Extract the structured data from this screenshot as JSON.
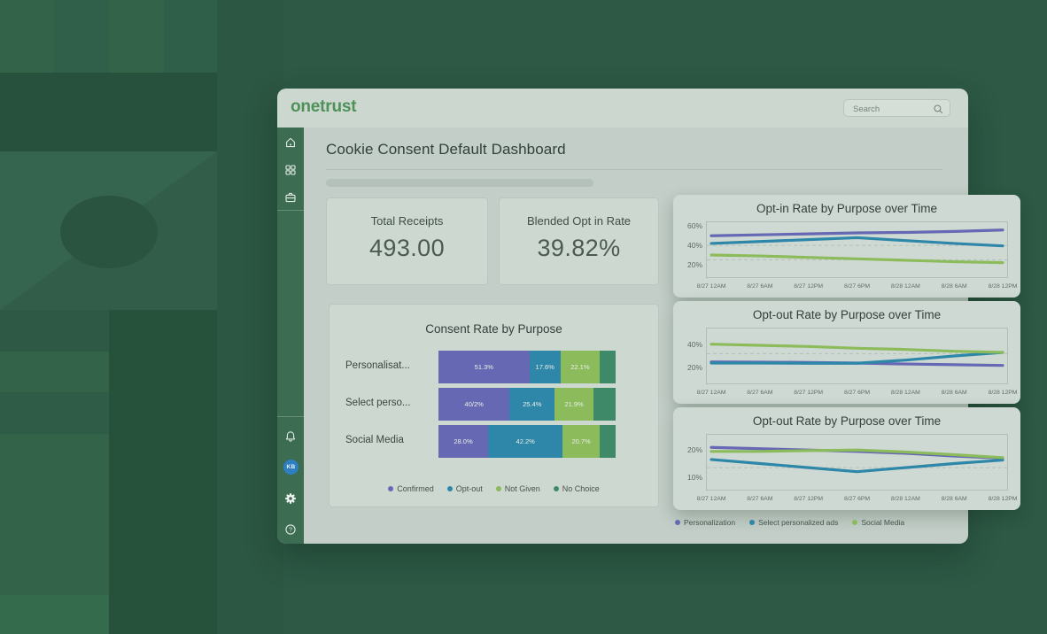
{
  "brand": {
    "logo_text": "onetrust",
    "logo_color": "#4e9159"
  },
  "header": {
    "search_placeholder": "Search"
  },
  "sidebar": {
    "avatar_initials": "KB"
  },
  "page": {
    "title": "Cookie Consent Default Dashboard"
  },
  "kpis": [
    {
      "label": "Total Receipts",
      "value": "493.00"
    },
    {
      "label": "Blended Opt in Rate",
      "value": "39.82%"
    }
  ],
  "palette": {
    "purple": "#6668b3",
    "teal": "#2e86a8",
    "green": "#8cbb5c",
    "dark_green": "#3e8a68"
  },
  "chart_data": [
    {
      "type": "bar",
      "orientation": "horizontal-stacked",
      "title": "Consent Rate by Purpose",
      "categories": [
        "Personalisat...",
        "Select perso...",
        "Social Media"
      ],
      "series": [
        {
          "name": "Confirmed",
          "color": "#6668b3",
          "values": [
            51.3,
            40.2,
            28.0
          ],
          "labels": [
            "51.3%",
            "40/2%",
            "28.0%"
          ]
        },
        {
          "name": "Opt-out",
          "color": "#2e86a8",
          "values": [
            17.6,
            25.4,
            42.2
          ],
          "labels": [
            "17.6%",
            "25.4%",
            "42.2%"
          ]
        },
        {
          "name": "Not Given",
          "color": "#8cbb5c",
          "values": [
            22.1,
            21.9,
            20.7
          ],
          "labels": [
            "22.1%",
            "21.9%",
            "20.7%"
          ]
        },
        {
          "name": "No Choice",
          "color": "#3e8a68",
          "values": [
            9.0,
            12.5,
            9.1
          ],
          "labels": [
            "",
            "",
            ""
          ]
        }
      ],
      "legend_position": "bottom",
      "xlim": [
        0,
        100
      ]
    },
    {
      "type": "line",
      "title": "Opt-in Rate by Purpose over Time",
      "x": [
        "8/27 12AM",
        "8/27 6AM",
        "8/27 12PM",
        "8/27 6PM",
        "8/28 12AM",
        "8/28 6AM",
        "8/28 12PM"
      ],
      "series": [
        {
          "name": "Personalization",
          "color": "#6668b3",
          "values": [
            50,
            51,
            52,
            53,
            53.5,
            54.5,
            56
          ]
        },
        {
          "name": "Select personalized ads",
          "color": "#2e86a8",
          "values": [
            42,
            44,
            46,
            48,
            45,
            42,
            39.5
          ]
        },
        {
          "name": "Social Media",
          "color": "#8cbb5c",
          "values": [
            30,
            29,
            27.5,
            26,
            24.5,
            23,
            22
          ]
        }
      ],
      "yticks": [
        20,
        40,
        60
      ],
      "ytick_labels": [
        "20%",
        "40%",
        "60%"
      ],
      "ylim": [
        6,
        65
      ],
      "reference_lines": [
        40,
        25
      ],
      "grid": "dashed-reference-lines",
      "legend_position": "shared-bottom"
    },
    {
      "type": "line",
      "title": "Opt-out Rate by Purpose over Time",
      "x": [
        "8/27 12AM",
        "8/27 6AM",
        "8/27 12PM",
        "8/27 6PM",
        "8/28 12AM",
        "8/28 6AM",
        "8/28 12PM"
      ],
      "series": [
        {
          "name": "Personalization",
          "color": "#6668b3",
          "values": [
            25,
            24.8,
            24.5,
            24,
            23.2,
            22.6,
            22
          ]
        },
        {
          "name": "Select personalized ads",
          "color": "#2e86a8",
          "values": [
            24,
            24,
            23.8,
            23.8,
            26.5,
            30,
            33
          ]
        },
        {
          "name": "Social Media",
          "color": "#8cbb5c",
          "values": [
            40,
            39,
            38,
            36.5,
            35.5,
            34,
            33
          ]
        }
      ],
      "yticks": [
        20,
        40
      ],
      "ytick_labels": [
        "20%",
        "40%"
      ],
      "ylim": [
        6,
        54
      ],
      "reference_lines": [
        32
      ],
      "grid": "dashed-reference-lines",
      "legend_position": "shared-bottom"
    },
    {
      "type": "line",
      "title": "Opt-out Rate by Purpose over Time",
      "x": [
        "8/27 12AM",
        "8/27 6AM",
        "8/27 12PM",
        "8/27 6PM",
        "8/28 12AM",
        "8/28 6AM",
        "8/28 12PM"
      ],
      "series": [
        {
          "name": "Personalization",
          "color": "#6668b3",
          "values": [
            21,
            20.5,
            20,
            19.5,
            18.8,
            17.8,
            17
          ]
        },
        {
          "name": "Select personalized ads",
          "color": "#2e86a8",
          "values": [
            16.5,
            15,
            13.5,
            12,
            13.5,
            15,
            16.3
          ]
        },
        {
          "name": "Social Media",
          "color": "#8cbb5c",
          "values": [
            19.5,
            19.5,
            19.8,
            20,
            19.3,
            18.3,
            17.2
          ]
        }
      ],
      "yticks": [
        10,
        20
      ],
      "ytick_labels": [
        "10%",
        "20%"
      ],
      "ylim": [
        5,
        26
      ],
      "reference_lines": [
        13.5
      ],
      "grid": "dashed-reference-lines",
      "legend_position": "shared-bottom"
    }
  ],
  "bottom_legend": [
    {
      "label": "Personalization",
      "color": "#6668b3"
    },
    {
      "label": "Select personalized ads",
      "color": "#2e86a8"
    },
    {
      "label": "Social Media",
      "color": "#8cbb5c"
    }
  ]
}
